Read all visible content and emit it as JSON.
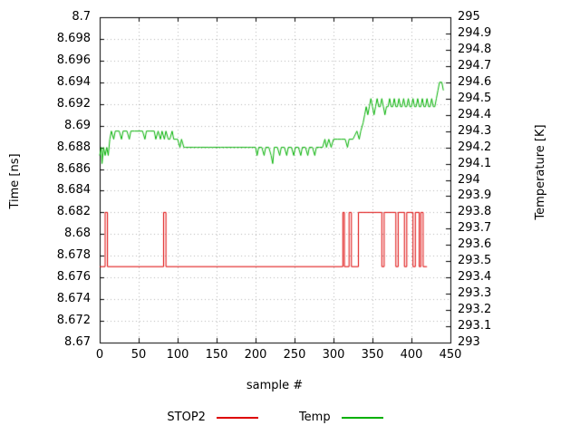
{
  "chart_data": {
    "type": "line",
    "title": "",
    "xlabel": "sample #",
    "ylabel_left": "Time [ns]",
    "ylabel_right": "Temperature [K]",
    "xlim": [
      0,
      450
    ],
    "ylim_left": [
      8.67,
      8.7
    ],
    "ylim_right": [
      293,
      295
    ],
    "x_ticks": [
      "0",
      "50",
      "100",
      "150",
      "200",
      "250",
      "300",
      "350",
      "400",
      "450"
    ],
    "y_left_ticks": [
      "8.7",
      "8.698",
      "8.696",
      "8.694",
      "8.692",
      "8.69",
      "8.688",
      "8.686",
      "8.684",
      "8.682",
      "8.68",
      "8.678",
      "8.676",
      "8.674",
      "8.672",
      "8.67"
    ],
    "y_right_ticks": [
      "295",
      "294.9",
      "294.8",
      "294.7",
      "294.6",
      "294.5",
      "294.4",
      "294.3",
      "294.2",
      "294.1",
      "294",
      "293.9",
      "293.8",
      "293.7",
      "293.6",
      "293.5",
      "293.4",
      "293.3",
      "293.2",
      "293.1",
      "293"
    ],
    "grid": true,
    "grid_color": "#b4b4b4",
    "border_color": "#000000",
    "background": "#ffffff",
    "legend_position": "bottom-center",
    "series": [
      {
        "name": "STOP2",
        "color": "#dd0000",
        "axis": "left",
        "points": [
          [
            0,
            8.677
          ],
          [
            7,
            8.677
          ],
          [
            7,
            8.682
          ],
          [
            10,
            8.682
          ],
          [
            10,
            8.677
          ],
          [
            82,
            8.677
          ],
          [
            82,
            8.682
          ],
          [
            85,
            8.682
          ],
          [
            85,
            8.677
          ],
          [
            312,
            8.677
          ],
          [
            312,
            8.682
          ],
          [
            314,
            8.682
          ],
          [
            314,
            8.677
          ],
          [
            320,
            8.677
          ],
          [
            320,
            8.682
          ],
          [
            323,
            8.682
          ],
          [
            323,
            8.677
          ],
          [
            332,
            8.677
          ],
          [
            332,
            8.682
          ],
          [
            362,
            8.682
          ],
          [
            362,
            8.677
          ],
          [
            365,
            8.677
          ],
          [
            365,
            8.682
          ],
          [
            380,
            8.682
          ],
          [
            380,
            8.677
          ],
          [
            383,
            8.677
          ],
          [
            383,
            8.682
          ],
          [
            391,
            8.682
          ],
          [
            391,
            8.677
          ],
          [
            394,
            8.677
          ],
          [
            394,
            8.682
          ],
          [
            402,
            8.682
          ],
          [
            402,
            8.677
          ],
          [
            405,
            8.677
          ],
          [
            405,
            8.682
          ],
          [
            410,
            8.682
          ],
          [
            410,
            8.677
          ],
          [
            412,
            8.677
          ],
          [
            412,
            8.682
          ],
          [
            415,
            8.682
          ],
          [
            415,
            8.677
          ],
          [
            420,
            8.677
          ]
        ]
      },
      {
        "name": "Temp",
        "color": "#00b000",
        "axis": "right",
        "points": [
          [
            0,
            294.15
          ],
          [
            2,
            294.2
          ],
          [
            3,
            294.1
          ],
          [
            5,
            294.2
          ],
          [
            7,
            294.15
          ],
          [
            9,
            294.2
          ],
          [
            11,
            294.15
          ],
          [
            13,
            294.25
          ],
          [
            15,
            294.3
          ],
          [
            18,
            294.25
          ],
          [
            20,
            294.3
          ],
          [
            25,
            294.3
          ],
          [
            28,
            294.25
          ],
          [
            30,
            294.3
          ],
          [
            35,
            294.3
          ],
          [
            38,
            294.25
          ],
          [
            40,
            294.3
          ],
          [
            45,
            294.3
          ],
          [
            50,
            294.3
          ],
          [
            55,
            294.3
          ],
          [
            58,
            294.25
          ],
          [
            60,
            294.3
          ],
          [
            65,
            294.3
          ],
          [
            70,
            294.3
          ],
          [
            72,
            294.25
          ],
          [
            75,
            294.3
          ],
          [
            78,
            294.25
          ],
          [
            80,
            294.3
          ],
          [
            83,
            294.25
          ],
          [
            85,
            294.3
          ],
          [
            88,
            294.25
          ],
          [
            90,
            294.25
          ],
          [
            93,
            294.3
          ],
          [
            95,
            294.25
          ],
          [
            98,
            294.25
          ],
          [
            100,
            294.25
          ],
          [
            103,
            294.2
          ],
          [
            105,
            294.25
          ],
          [
            108,
            294.2
          ],
          [
            110,
            294.2
          ],
          [
            115,
            294.2
          ],
          [
            120,
            294.2
          ],
          [
            125,
            294.2
          ],
          [
            130,
            294.2
          ],
          [
            135,
            294.2
          ],
          [
            140,
            294.2
          ],
          [
            145,
            294.2
          ],
          [
            150,
            294.2
          ],
          [
            155,
            294.2
          ],
          [
            160,
            294.2
          ],
          [
            165,
            294.2
          ],
          [
            170,
            294.2
          ],
          [
            175,
            294.2
          ],
          [
            180,
            294.2
          ],
          [
            185,
            294.2
          ],
          [
            190,
            294.2
          ],
          [
            195,
            294.2
          ],
          [
            200,
            294.2
          ],
          [
            202,
            294.15
          ],
          [
            204,
            294.2
          ],
          [
            208,
            294.2
          ],
          [
            211,
            294.15
          ],
          [
            213,
            294.2
          ],
          [
            217,
            294.2
          ],
          [
            220,
            294.15
          ],
          [
            222,
            294.1
          ],
          [
            224,
            294.2
          ],
          [
            228,
            294.2
          ],
          [
            231,
            294.15
          ],
          [
            233,
            294.2
          ],
          [
            237,
            294.2
          ],
          [
            240,
            294.15
          ],
          [
            242,
            294.2
          ],
          [
            246,
            294.2
          ],
          [
            249,
            294.15
          ],
          [
            251,
            294.2
          ],
          [
            255,
            294.2
          ],
          [
            258,
            294.15
          ],
          [
            260,
            294.2
          ],
          [
            264,
            294.2
          ],
          [
            267,
            294.15
          ],
          [
            269,
            294.2
          ],
          [
            273,
            294.2
          ],
          [
            276,
            294.15
          ],
          [
            278,
            294.2
          ],
          [
            282,
            294.2
          ],
          [
            286,
            294.2
          ],
          [
            289,
            294.25
          ],
          [
            291,
            294.2
          ],
          [
            294,
            294.25
          ],
          [
            297,
            294.2
          ],
          [
            300,
            294.25
          ],
          [
            305,
            294.25
          ],
          [
            310,
            294.25
          ],
          [
            315,
            294.25
          ],
          [
            318,
            294.2
          ],
          [
            320,
            294.25
          ],
          [
            325,
            294.25
          ],
          [
            330,
            294.3
          ],
          [
            333,
            294.25
          ],
          [
            335,
            294.3
          ],
          [
            338,
            294.35
          ],
          [
            340,
            294.4
          ],
          [
            342,
            294.45
          ],
          [
            344,
            294.4
          ],
          [
            346,
            294.45
          ],
          [
            348,
            294.5
          ],
          [
            350,
            294.45
          ],
          [
            352,
            294.4
          ],
          [
            354,
            294.45
          ],
          [
            356,
            294.5
          ],
          [
            358,
            294.45
          ],
          [
            360,
            294.45
          ],
          [
            362,
            294.5
          ],
          [
            364,
            294.45
          ],
          [
            366,
            294.4
          ],
          [
            368,
            294.45
          ],
          [
            370,
            294.45
          ],
          [
            372,
            294.5
          ],
          [
            374,
            294.45
          ],
          [
            376,
            294.45
          ],
          [
            378,
            294.5
          ],
          [
            380,
            294.45
          ],
          [
            382,
            294.45
          ],
          [
            384,
            294.5
          ],
          [
            386,
            294.45
          ],
          [
            388,
            294.45
          ],
          [
            390,
            294.5
          ],
          [
            392,
            294.45
          ],
          [
            394,
            294.45
          ],
          [
            396,
            294.5
          ],
          [
            398,
            294.45
          ],
          [
            400,
            294.45
          ],
          [
            402,
            294.5
          ],
          [
            404,
            294.45
          ],
          [
            406,
            294.45
          ],
          [
            408,
            294.5
          ],
          [
            410,
            294.45
          ],
          [
            412,
            294.45
          ],
          [
            414,
            294.5
          ],
          [
            416,
            294.45
          ],
          [
            418,
            294.45
          ],
          [
            420,
            294.5
          ],
          [
            422,
            294.45
          ],
          [
            424,
            294.45
          ],
          [
            426,
            294.5
          ],
          [
            428,
            294.45
          ],
          [
            430,
            294.45
          ],
          [
            432,
            294.5
          ],
          [
            434,
            294.55
          ],
          [
            436,
            294.6
          ],
          [
            439,
            294.6
          ],
          [
            441,
            294.55
          ]
        ]
      }
    ]
  }
}
